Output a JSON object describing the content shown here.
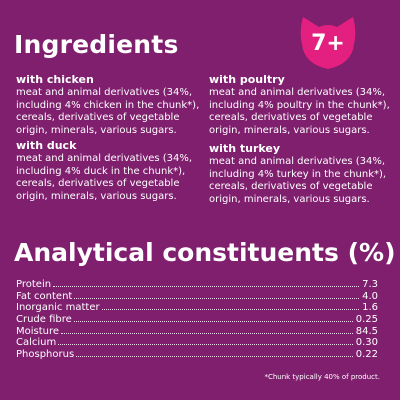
{
  "header": {
    "title": "Ingredients",
    "badge": "7+"
  },
  "ingredients": [
    {
      "name": "with chicken",
      "description": "meat and animal derivatives (34%, including 4% chicken in the chunk*), cereals, derivatives of vegetable origin, minerals, various sugars."
    },
    {
      "name": "with duck",
      "description": "meat and animal derivatives (34%, including 4% duck in the chunk*), cereals, derivatives of vegetable origin, minerals, various sugars."
    },
    {
      "name": "with poultry",
      "description": "meat and animal derivatives (34%, including 4% poultry in the chunk*), cereals, derivatives of vegetable origin, minerals, various sugars."
    },
    {
      "name": "with turkey",
      "description": "meat and animal derivatives (34%, including 4% turkey in the chunk*), cereals, derivatives of vegetable origin, minerals, various sugars."
    }
  ],
  "analytical": {
    "title": "Analytical constituents (%)",
    "rows": [
      {
        "label": "Protein",
        "value": "7.3"
      },
      {
        "label": "Fat content",
        "value": "4.0"
      },
      {
        "label": "Inorganic matter",
        "value": "1.6"
      },
      {
        "label": "Crude fibre",
        "value": "0.25"
      },
      {
        "label": "Moisture",
        "value": "84.5"
      },
      {
        "label": "Calcium",
        "value": "0.30"
      },
      {
        "label": "Phosphorus",
        "value": "0.22"
      }
    ]
  },
  "footnote": "*Chunk typically 40% of product.",
  "colors": {
    "background": "#7f1f6e",
    "badge": "#e3207f",
    "text": "#ffffff"
  },
  "icons": {
    "badge_shape": "cat-head-icon"
  }
}
